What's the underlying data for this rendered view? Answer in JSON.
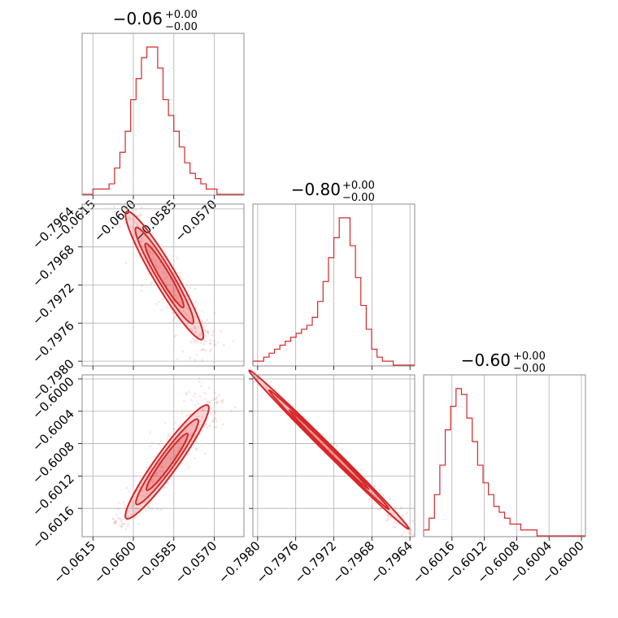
{
  "colors": {
    "series": "#d62728",
    "grid": "#b0b0b0",
    "frame": "#8c8c8c"
  },
  "chart_data": [
    {
      "type": "histogram",
      "panel": "hist-p0",
      "title": {
        "value": "−0.06",
        "plus": "+0.00",
        "minus": "−0.00"
      },
      "x_ticks": [
        "−0.0615",
        "−0.0600",
        "−0.0585",
        "−0.0570"
      ],
      "xlim": [
        -0.0619,
        -0.0559
      ],
      "bin_width": 0.0002,
      "bins_from": -0.0619,
      "counts": [
        0,
        0,
        1,
        1,
        1,
        2,
        5,
        8,
        12,
        18,
        22,
        26,
        28,
        28,
        24,
        18,
        15,
        12,
        9,
        6,
        4,
        3,
        2,
        1,
        1,
        0,
        0,
        0,
        0,
        0
      ]
    },
    {
      "type": "histogram",
      "panel": "hist-p1",
      "title": {
        "value": "−0.80",
        "plus": "+0.00",
        "minus": "−0.00"
      },
      "xlim": [
        -0.79805,
        -0.79635
      ],
      "bin_width": 5.67e-05,
      "bins_from": -0.79805,
      "counts": [
        1,
        1,
        2,
        3,
        4,
        5,
        6,
        7,
        8,
        9,
        10,
        12,
        16,
        21,
        27,
        32,
        37,
        37,
        30,
        22,
        15,
        9,
        4,
        2,
        1,
        1,
        0,
        0,
        0,
        0
      ]
    },
    {
      "type": "histogram",
      "panel": "hist-p2",
      "title": {
        "value": "−0.60",
        "plus": "+0.00",
        "minus": "−0.00"
      },
      "x_ticks": [
        "−0.6016",
        "−0.6012",
        "−0.6008",
        "−0.6004",
        "−0.6000"
      ],
      "xlim": [
        -0.60195,
        -0.59995
      ],
      "bin_width": 6.67e-05,
      "bins_from": -0.60195,
      "counts": [
        1,
        3,
        7,
        12,
        18,
        22,
        25,
        24,
        20,
        16,
        12,
        9,
        7,
        5,
        4,
        3,
        2,
        2,
        1,
        1,
        1,
        0,
        0,
        0,
        0,
        0,
        0,
        0,
        0,
        0
      ]
    },
    {
      "type": "scatter",
      "panel": "scatter-p0-p1",
      "y_ticks": [
        "−0.7964",
        "−0.7968",
        "−0.7972",
        "−0.7976",
        "−0.7980"
      ],
      "xlim": [
        -0.0619,
        -0.0559
      ],
      "ylim": [
        -0.79805,
        -0.79635
      ],
      "trend": {
        "x": [
          -0.0601,
          -0.0576
        ],
        "y": [
          -0.7965,
          -0.7977
        ]
      }
    },
    {
      "type": "scatter",
      "panel": "scatter-p0-p2",
      "x_ticks": [
        "−0.0615",
        "−0.0600",
        "−0.0585",
        "−0.0570"
      ],
      "y_ticks": [
        "−0.6000",
        "−0.6004",
        "−0.6008",
        "−0.6012",
        "−0.6016"
      ],
      "xlim": [
        -0.0619,
        -0.0559
      ],
      "ylim": [
        -0.60195,
        -0.59995
      ],
      "trend": {
        "x": [
          -0.0601,
          -0.0574
        ],
        "y": [
          -0.60165,
          -0.6004
        ]
      }
    },
    {
      "type": "scatter",
      "panel": "scatter-p1-p2",
      "x_ticks": [
        "−0.7980",
        "−0.7976",
        "−0.7972",
        "−0.7968",
        "−0.7964"
      ],
      "xlim": [
        -0.79805,
        -0.79635
      ],
      "ylim": [
        -0.60195,
        -0.59995
      ],
      "trend": {
        "x": [
          -0.798,
          -0.7965
        ],
        "y": [
          -0.6,
          -0.60175
        ]
      }
    }
  ]
}
